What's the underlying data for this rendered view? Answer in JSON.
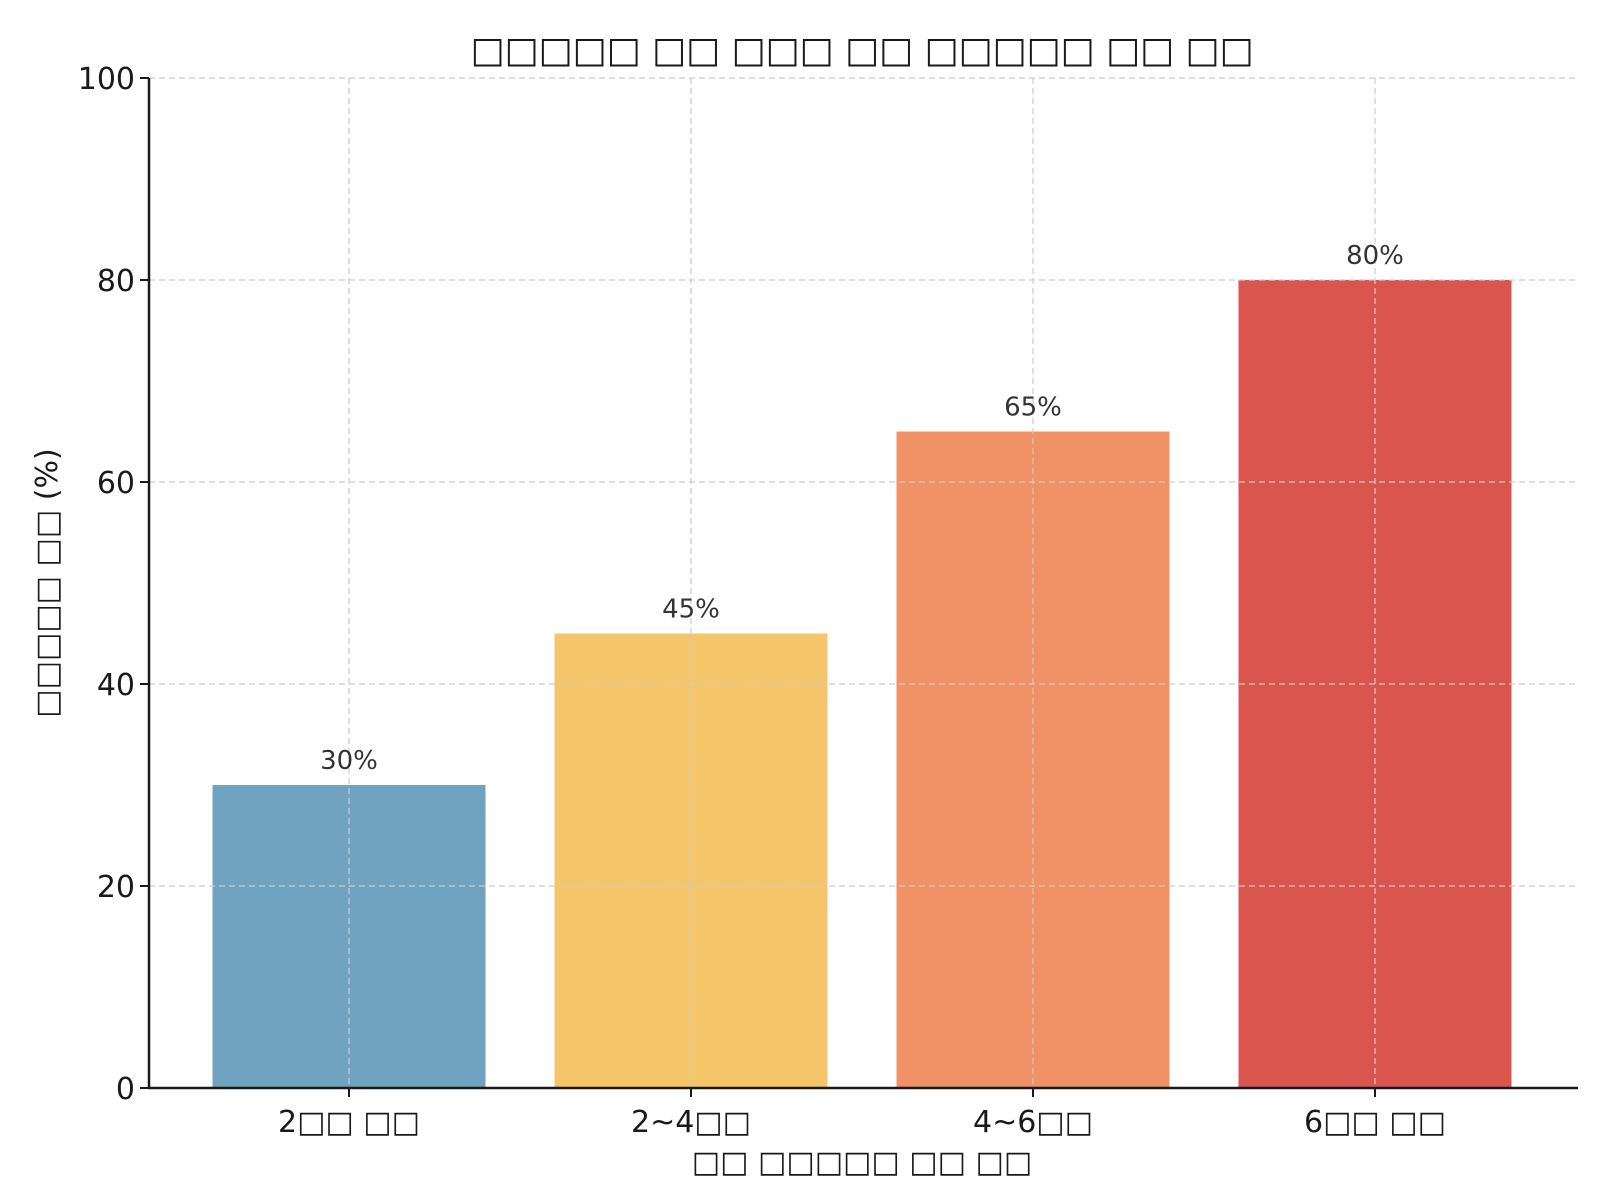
{
  "chart_data": {
    "type": "bar",
    "title": "□□□□□ □□ □□□ □□ □□□□□ □□ □□",
    "xlabel": "□□ □□□□□ □□ □□",
    "ylabel": "□□□□□ □□ (%)",
    "categories": [
      "2□□ □□",
      "2~4□□",
      "4~6□□",
      "6□□ □□"
    ],
    "values": [
      30,
      45,
      65,
      80
    ],
    "value_labels": [
      "30%",
      "45%",
      "65%",
      "80%"
    ],
    "colors": [
      "#6fa3c0",
      "#f5c56a",
      "#f09265",
      "#d9554e"
    ],
    "ylim": [
      0,
      100
    ],
    "yticks": [
      0,
      20,
      40,
      60,
      80,
      100
    ],
    "ytick_labels": [
      "0",
      "20",
      "40",
      "60",
      "80",
      "100"
    ],
    "grid": true,
    "legend": "none"
  }
}
